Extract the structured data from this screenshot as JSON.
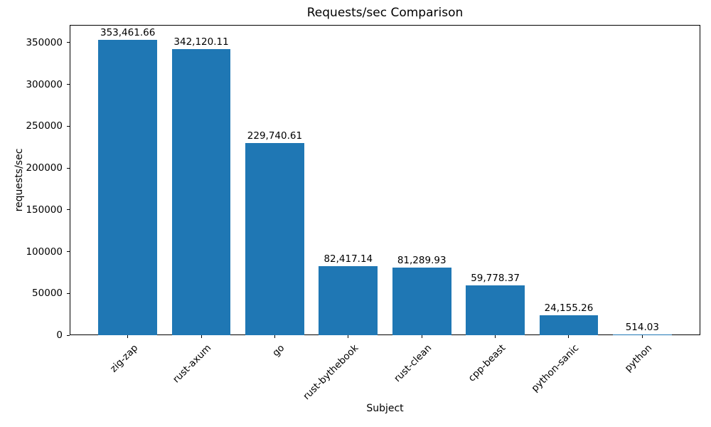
{
  "chart_data": {
    "type": "bar",
    "title": "Requests/sec Comparison",
    "xlabel": "Subject",
    "ylabel": "requests/sec",
    "categories": [
      "zig-zap",
      "rust-axum",
      "go",
      "rust-bythebook",
      "rust-clean",
      "cpp-beast",
      "python-sanic",
      "python"
    ],
    "values": [
      353461.66,
      342120.11,
      229740.61,
      82417.14,
      81289.93,
      59778.37,
      24155.26,
      514.03
    ],
    "value_labels": [
      "353,461.66",
      "342,120.11",
      "229,740.61",
      "82,417.14",
      "81,289.93",
      "59,778.37",
      "24,155.26",
      "514.03"
    ],
    "yticks": [
      0,
      50000,
      100000,
      150000,
      200000,
      250000,
      300000,
      350000
    ],
    "ytick_labels": [
      "0",
      "50000",
      "100000",
      "150000",
      "200000",
      "250000",
      "300000",
      "350000"
    ],
    "ylim": [
      0,
      371135
    ],
    "xlim": [
      -0.79,
      7.79
    ],
    "bar_width_fraction": 0.8,
    "bar_color": "#1f77b4",
    "axis_color": "#000000",
    "text_color": "#000000",
    "grid": false,
    "legend": null
  }
}
